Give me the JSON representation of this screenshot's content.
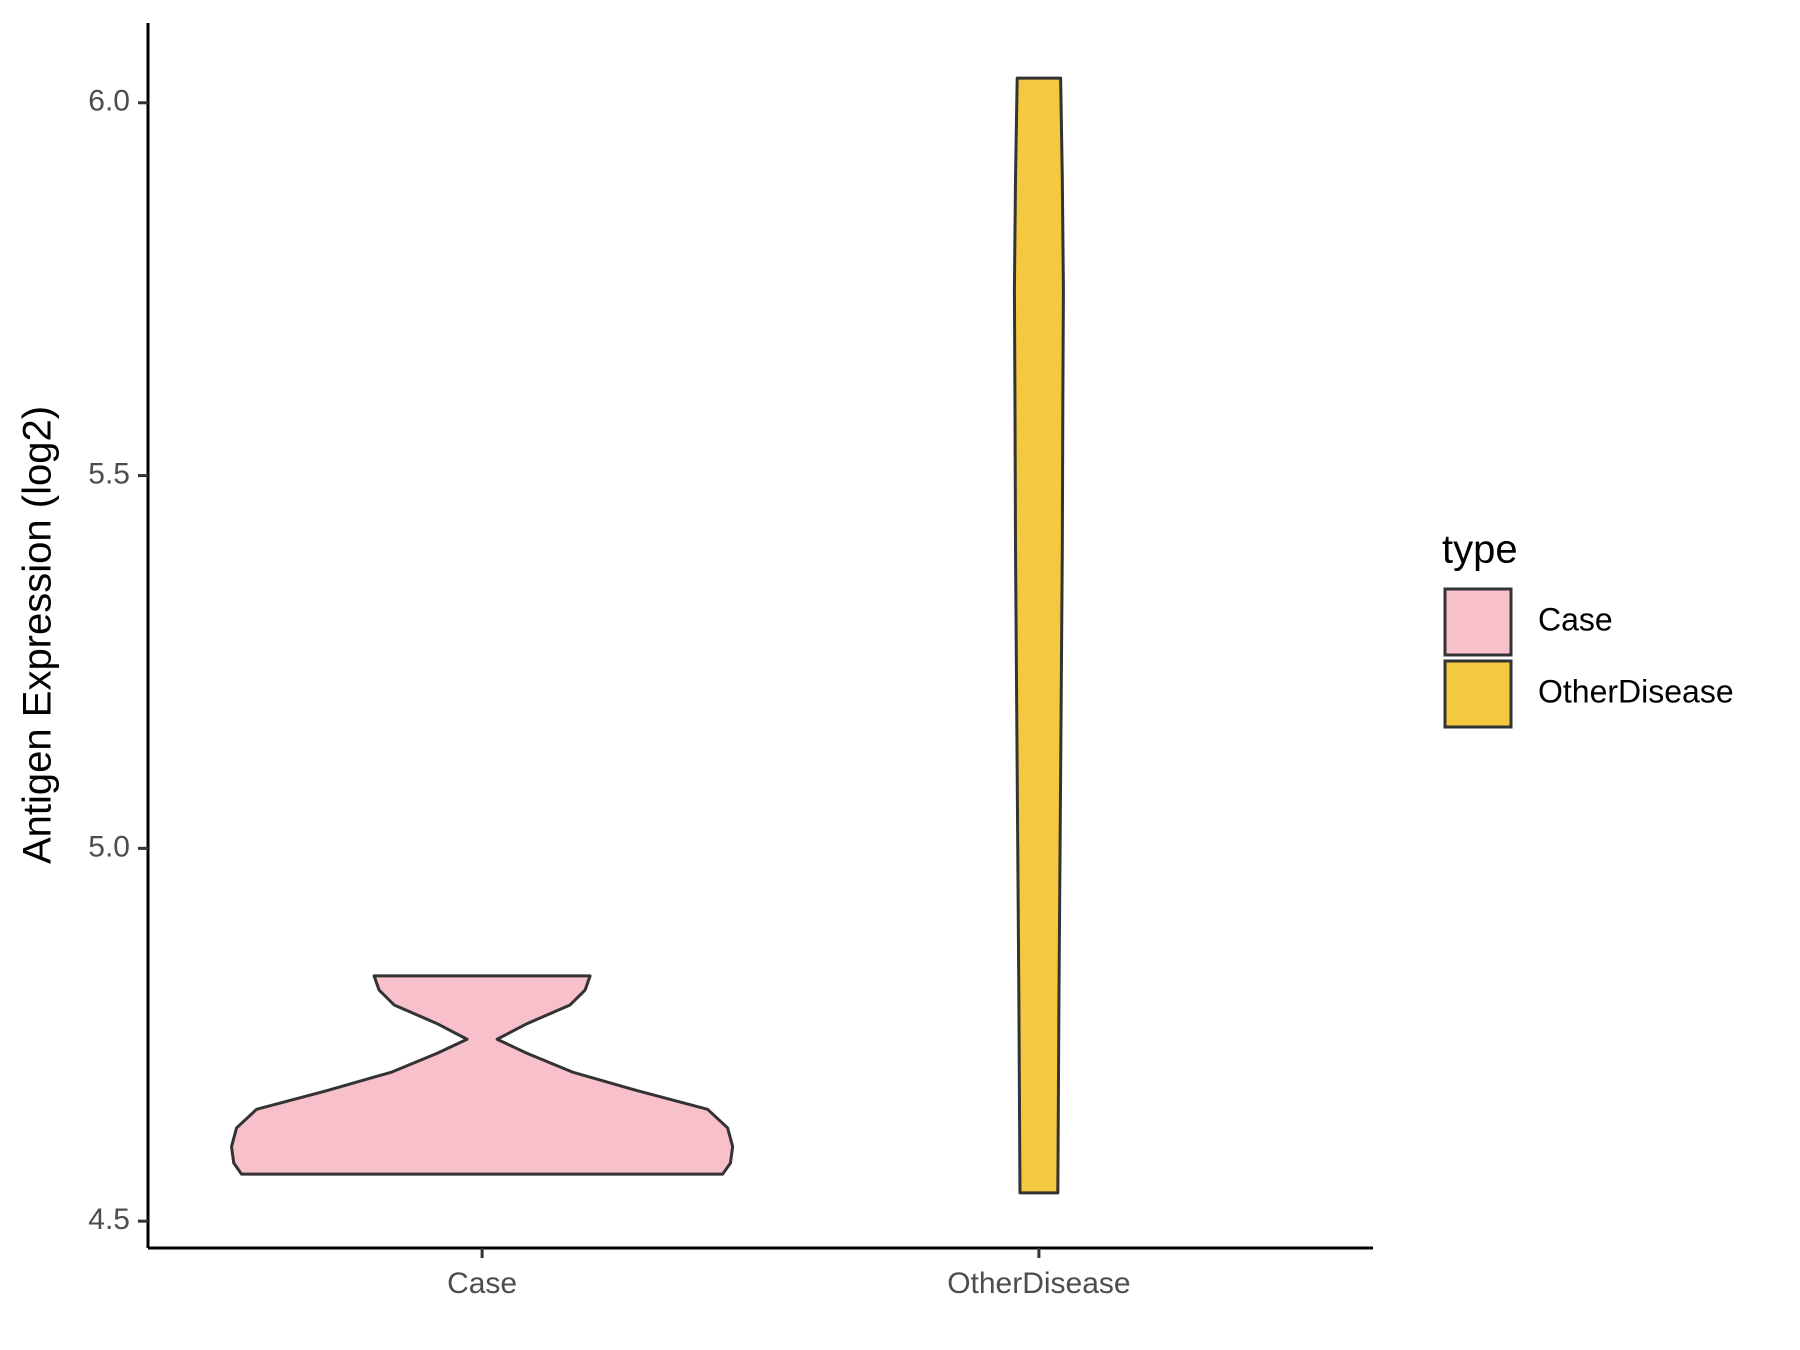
{
  "chart_data": {
    "type": "violin",
    "y_label": "Antigen Expression (log2)",
    "categories": [
      "Case",
      "OtherDisease"
    ],
    "ylim": [
      4.464,
      6.107
    ],
    "yticks": [
      4.5,
      {
        "value": 5,
        "label": "5.0"
      },
      5.5,
      {
        "value": 6,
        "label": "6.0"
      }
    ],
    "legend_title": "type",
    "legend_position": "right",
    "series": [
      {
        "name": "Case",
        "color": "#f8c0cb",
        "y": [
          4.563,
          4.578,
          4.6,
          4.625,
          4.65,
          4.675,
          4.7,
          4.725,
          4.744,
          4.765,
          4.79,
          4.81,
          4.829
        ],
        "width": [
          0.432,
          0.446,
          0.45,
          0.441,
          0.405,
          0.279,
          0.162,
          0.081,
          0.027,
          0.081,
          0.158,
          0.185,
          0.194
        ]
      },
      {
        "name": "OtherDisease",
        "color": "#f5c93f",
        "y": [
          4.538,
          4.8,
          5.0,
          5.2,
          5.4,
          5.6,
          5.75,
          5.9,
          6.033
        ],
        "width": [
          0.034,
          0.036,
          0.038,
          0.04,
          0.042,
          0.043,
          0.044,
          0.042,
          0.039
        ]
      }
    ]
  }
}
